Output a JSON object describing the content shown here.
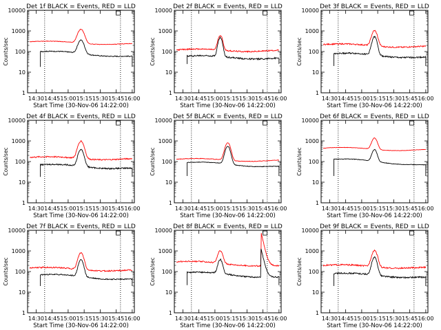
{
  "chart_data": [
    {
      "type": "line",
      "title": "Det 1f BLACK = Events, RED = LLD",
      "xlabel": "Start Time (30-Nov-06 14:22:00)",
      "ylabel": "Counts/sec",
      "scale": "log",
      "ylim": [
        1,
        10000
      ],
      "yticks": [
        "1",
        "10",
        "100",
        "1000",
        "10000"
      ],
      "xticks": [
        "14:30",
        "14:45",
        "15:00",
        "15:15",
        "15:30",
        "15:45",
        "16:00"
      ],
      "xlim_min": [
        2,
        100
      ],
      "vlines_min": [
        26,
        126
      ],
      "series": [
        {
          "color": "#ff0000",
          "base": 300,
          "end": 230,
          "peak": {
            "x": 50,
            "amp": 950,
            "w": 2.6
          },
          "noise": 0.03,
          "x_range": [
            2,
            98
          ]
        },
        {
          "color": "#000000",
          "base": 100,
          "end": 55,
          "peak": {
            "x": 50,
            "amp": 280,
            "w": 2.4
          },
          "noise": 0.05,
          "x_range": [
            12,
            98
          ],
          "drop": 18
        }
      ]
    },
    {
      "type": "line",
      "title": "Det 2f BLACK = Events, RED = LLD",
      "xlabel": "Start Time (30-Nov-06 14:22:00)",
      "ylabel": "Counts/sec",
      "scale": "log",
      "ylim": [
        1,
        10000
      ],
      "yticks": [
        "1",
        "10",
        "100",
        "1000",
        "10000"
      ],
      "xticks": [
        "14:30",
        "14:45",
        "15:00",
        "15:15",
        "15:30",
        "15:45",
        "16:00"
      ],
      "series": [
        {
          "color": "#ff0000",
          "base": 120,
          "end": 110,
          "peak": {
            "x": 43,
            "amp": 500,
            "w": 1.8
          },
          "noise": 0.07,
          "x_range": [
            2,
            98
          ]
        },
        {
          "color": "#000000",
          "base": 60,
          "end": 45,
          "peak": {
            "x": 43,
            "amp": 420,
            "w": 1.7
          },
          "noise": 0.08,
          "x_range": [
            12,
            98
          ],
          "drop": 25
        }
      ]
    },
    {
      "type": "line",
      "title": "Det 3f BLACK = Events, RED = LLD",
      "xlabel": "Start Time (30-Nov-06 14:22:00)",
      "ylabel": "Counts/sec",
      "scale": "log",
      "ylim": [
        1,
        10000
      ],
      "yticks": [
        "1",
        "10",
        "100",
        "1000",
        "10000"
      ],
      "xticks": [
        "14:30",
        "14:45",
        "15:00",
        "15:15",
        "15:30",
        "15:45",
        "16:00"
      ],
      "series": [
        {
          "color": "#ff0000",
          "base": 220,
          "end": 170,
          "peak": {
            "x": 50,
            "amp": 850,
            "w": 2.2
          },
          "noise": 0.07,
          "x_range": [
            2,
            98
          ]
        },
        {
          "color": "#000000",
          "base": 80,
          "end": 50,
          "peak": {
            "x": 50,
            "amp": 450,
            "w": 2.0
          },
          "noise": 0.08,
          "x_range": [
            12,
            98
          ],
          "drop": 20
        }
      ]
    },
    {
      "type": "line",
      "title": "Det 4f BLACK = Events, RED = LLD",
      "xlabel": "Start Time (30-Nov-06 14:22:00)",
      "ylabel": "Counts/sec",
      "scale": "log",
      "ylim": [
        1,
        10000
      ],
      "yticks": [
        "1",
        "10",
        "100",
        "1000",
        "10000"
      ],
      "xticks": [
        "14:30",
        "14:45",
        "15:00",
        "15:15",
        "15:30",
        "15:45",
        "16:00"
      ],
      "series": [
        {
          "color": "#ff0000",
          "base": 160,
          "end": 130,
          "peak": {
            "x": 50,
            "amp": 850,
            "w": 2.4
          },
          "noise": 0.07,
          "x_range": [
            2,
            98
          ]
        },
        {
          "color": "#000000",
          "base": 70,
          "end": 45,
          "peak": {
            "x": 50,
            "amp": 330,
            "w": 2.2
          },
          "noise": 0.07,
          "x_range": [
            12,
            98
          ],
          "drop": 18
        }
      ]
    },
    {
      "type": "line",
      "title": "Det 5f BLACK = Events, RED = LLD",
      "xlabel": "Start Time (30-Nov-06 14:22:00)",
      "ylabel": "Counts/sec",
      "scale": "log",
      "ylim": [
        1,
        10000
      ],
      "yticks": [
        "1",
        "10",
        "100",
        "1000",
        "10000"
      ],
      "xticks": [
        "14:30",
        "14:45",
        "15:00",
        "15:15",
        "15:30",
        "15:45",
        "16:00"
      ],
      "series": [
        {
          "color": "#ff0000",
          "base": 130,
          "end": 110,
          "peak": {
            "x": 50,
            "amp": 700,
            "w": 2.2
          },
          "noise": 0.03,
          "x_range": [
            2,
            98
          ]
        },
        {
          "color": "#000000",
          "base": 90,
          "end": 55,
          "peak": {
            "x": 50,
            "amp": 480,
            "w": 2.1
          },
          "noise": 0.03,
          "x_range": [
            12,
            98
          ],
          "drop": 20
        }
      ]
    },
    {
      "type": "line",
      "title": "Det 6f BLACK = Events, RED = LLD",
      "xlabel": "Start Time (30-Nov-06 14:22:00)",
      "ylabel": "Counts/sec",
      "scale": "log",
      "ylim": [
        1,
        10000
      ],
      "yticks": [
        "1",
        "10",
        "100",
        "1000",
        "10000"
      ],
      "xticks": [
        "14:30",
        "14:45",
        "15:00",
        "15:15",
        "15:30",
        "15:45",
        "16:00"
      ],
      "series": [
        {
          "color": "#ff0000",
          "base": 450,
          "end": 360,
          "peak": {
            "x": 50,
            "amp": 1000,
            "w": 2.2
          },
          "noise": 0.02,
          "x_range": [
            2,
            98
          ]
        },
        {
          "color": "#000000",
          "base": 130,
          "end": 65,
          "peak": {
            "x": 50,
            "amp": 280,
            "w": 2.0
          },
          "noise": 0.03,
          "x_range": [
            12,
            98
          ],
          "drop": 20
        }
      ]
    },
    {
      "type": "line",
      "title": "Det 7f BLACK = Events, RED = LLD",
      "xlabel": "Start Time (30-Nov-06 14:22:00)",
      "ylabel": "Counts/sec",
      "scale": "log",
      "ylim": [
        1,
        10000
      ],
      "yticks": [
        "1",
        "10",
        "100",
        "1000",
        "10000"
      ],
      "xticks": [
        "14:30",
        "14:45",
        "15:00",
        "15:15",
        "15:30",
        "15:45",
        "16:00"
      ],
      "series": [
        {
          "color": "#ff0000",
          "base": 150,
          "end": 110,
          "peak": {
            "x": 50,
            "amp": 680,
            "w": 2.2
          },
          "noise": 0.07,
          "x_range": [
            2,
            98
          ]
        },
        {
          "color": "#000000",
          "base": 70,
          "end": 40,
          "peak": {
            "x": 50,
            "amp": 320,
            "w": 2.0
          },
          "noise": 0.06,
          "x_range": [
            12,
            98
          ],
          "drop": 20
        }
      ]
    },
    {
      "type": "line",
      "title": "Det 8f BLACK = Events, RED = LLD",
      "xlabel": "Start Time (30-Nov-06 14:22:00)",
      "ylabel": "Counts/sec",
      "scale": "log",
      "ylim": [
        1,
        10000
      ],
      "yticks": [
        "1",
        "10",
        "100",
        "1000",
        "10000"
      ],
      "xticks": [
        "14:30",
        "14:45",
        "15:00",
        "15:15",
        "15:30",
        "15:45",
        "16:00"
      ],
      "series": [
        {
          "color": "#ff0000",
          "base": 300,
          "end": 180,
          "peak": {
            "x": 43,
            "amp": 750,
            "w": 2.0
          },
          "noise": 0.07,
          "x_range": [
            2,
            98
          ],
          "spike": {
            "x": 81,
            "amp": 9000
          }
        },
        {
          "color": "#000000",
          "base": 90,
          "end": 50,
          "peak": {
            "x": 43,
            "amp": 300,
            "w": 1.8
          },
          "noise": 0.07,
          "x_range": [
            12,
            98
          ],
          "drop": 22,
          "spike": {
            "x": 81,
            "amp": 1400
          }
        }
      ]
    },
    {
      "type": "line",
      "title": "Det 9f BLACK = Events, RED = LLD",
      "xlabel": "Start Time (30-Nov-06 14:22:00)",
      "ylabel": "Counts/sec",
      "scale": "log",
      "ylim": [
        1,
        10000
      ],
      "yticks": [
        "1",
        "10",
        "100",
        "1000",
        "10000"
      ],
      "xticks": [
        "14:30",
        "14:45",
        "15:00",
        "15:15",
        "15:30",
        "15:45",
        "16:00"
      ],
      "series": [
        {
          "color": "#ff0000",
          "base": 200,
          "end": 150,
          "peak": {
            "x": 50,
            "amp": 900,
            "w": 2.2
          },
          "noise": 0.08,
          "x_range": [
            2,
            98
          ]
        },
        {
          "color": "#000000",
          "base": 80,
          "end": 50,
          "peak": {
            "x": 50,
            "amp": 420,
            "w": 2.0
          },
          "noise": 0.08,
          "x_range": [
            12,
            98
          ],
          "drop": 20
        }
      ]
    }
  ]
}
